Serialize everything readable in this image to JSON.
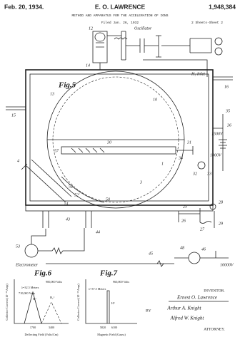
{
  "header": {
    "date": "Feb. 20, 1934.",
    "inventor": "E. O. LAWRENCE",
    "number": "1,948,384",
    "title": "METHOD AND APPARATUS FOR THE ACCELERATION OF IONS",
    "filed": "Filed Jan. 26, 1932",
    "sheets": "2 Sheets-Sheet 2"
  },
  "fig5": {
    "label": "Fig.5",
    "oscillator": "Oscillator",
    "inlet": "H₂ Inlet",
    "electrometer": "Electrometer",
    "voltages": [
      "1500V",
      "1000V",
      "10000V"
    ],
    "numerals": [
      "12",
      "14",
      "15",
      "16",
      "10",
      "13",
      "30",
      "57",
      "31",
      "32",
      "33",
      "34",
      "35",
      "36",
      "53",
      "52",
      "52'",
      "51",
      "50",
      "1",
      "3",
      "43",
      "44",
      "45",
      "46",
      "48",
      "25",
      "26",
      "27",
      "28",
      "29",
      "4"
    ]
  },
  "fig6": {
    "label": "Fig.6",
    "y_axis": "Collector Current (10⁻¹³ Amp)",
    "x_axis": "Deflecting Field (Volts/Cm)",
    "wavelength": "λ=32.5 Meters",
    "notes": [
      "900,000 Volts",
      "710,000 Volts",
      "H⁺",
      "H₂⁺"
    ],
    "ticks": [
      "1700",
      "3400"
    ]
  },
  "fig7": {
    "label": "Fig.7",
    "y_axis": "Collector Current (10⁻¹³ Amp)",
    "x_axis": "Magnetic Field (Gauss)",
    "wavelength": "λ=37.5 Meters",
    "notes": [
      "960,000 Volts",
      "H⁺"
    ],
    "ticks": [
      "5820",
      "6100"
    ]
  },
  "signature": {
    "role": "INVENTOR.",
    "inventor": "Ernest O. Lawrence",
    "by": "BY",
    "attorneys": [
      "Arthur A. Knight",
      "Alfred W. Knight"
    ],
    "attorney_role": "ATTORNEY."
  }
}
